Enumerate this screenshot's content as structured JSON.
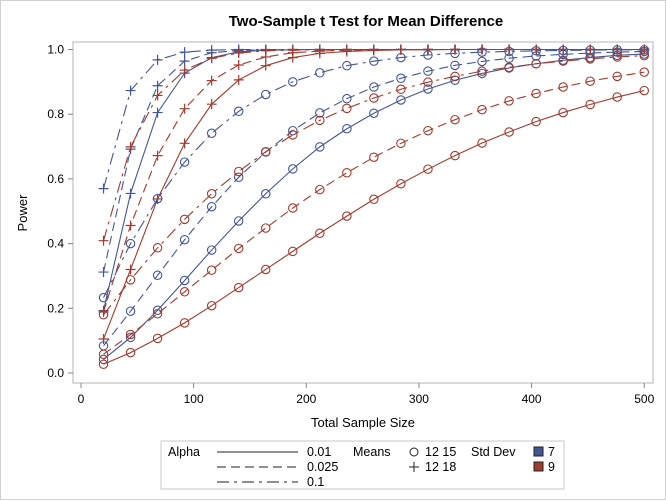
{
  "chart_data": {
    "type": "line",
    "title": "Two-Sample t Test for Mean Difference",
    "xlabel": "Total Sample Size",
    "ylabel": "Power",
    "xlim": [
      0,
      510
    ],
    "ylim": [
      0,
      1.0
    ],
    "xticks": [
      "0",
      "100",
      "200",
      "300",
      "400",
      "500"
    ],
    "yticks": [
      "0.0",
      "0.2",
      "0.4",
      "0.6",
      "0.8",
      "1.0"
    ],
    "grid": false,
    "legend_placement": "bottom",
    "x": [
      20,
      44,
      68,
      92,
      116,
      140,
      164,
      188,
      212,
      236,
      260,
      284,
      308,
      332,
      356,
      380,
      404,
      428,
      452,
      476,
      500
    ],
    "colors": {
      "7": "#445694",
      "9": "#A23A2E"
    },
    "legend": {
      "alpha_title": "Alpha",
      "alpha": [
        {
          "label": "0.01",
          "dash": "solid"
        },
        {
          "label": "0.025",
          "dash": "dashed"
        },
        {
          "label": "0.1",
          "dash": "dash-dot"
        }
      ],
      "means_title": "Means",
      "means": [
        {
          "label": "12 15",
          "marker": "circle"
        },
        {
          "label": "12 18",
          "marker": "plus"
        }
      ],
      "sd_title": "Std Dev",
      "sd": [
        {
          "label": "7"
        },
        {
          "label": "9"
        }
      ]
    },
    "series": [
      {
        "alpha": "0.01",
        "means": "12 15",
        "sd": "7",
        "values": [
          0.042,
          0.11,
          0.194,
          0.286,
          0.38,
          0.47,
          0.554,
          0.631,
          0.699,
          0.755,
          0.803,
          0.844,
          0.878,
          0.905,
          0.926,
          0.943,
          0.956,
          0.967,
          0.975,
          0.982,
          0.986
        ]
      },
      {
        "alpha": "0.01",
        "means": "12 15",
        "sd": "9",
        "values": [
          0.027,
          0.063,
          0.107,
          0.155,
          0.208,
          0.264,
          0.32,
          0.376,
          0.432,
          0.485,
          0.537,
          0.585,
          0.63,
          0.672,
          0.711,
          0.745,
          0.777,
          0.805,
          0.83,
          0.853,
          0.873
        ]
      },
      {
        "alpha": "0.01",
        "means": "12 18",
        "sd": "7",
        "values": [
          0.193,
          0.555,
          0.805,
          0.927,
          0.975,
          0.993,
          0.998,
          0.999,
          1,
          1,
          1,
          1,
          1,
          1,
          1,
          1,
          1,
          1,
          1,
          1,
          1
        ]
      },
      {
        "alpha": "0.01",
        "means": "12 18",
        "sd": "9",
        "values": [
          0.105,
          0.32,
          0.538,
          0.71,
          0.831,
          0.906,
          0.95,
          0.975,
          0.988,
          0.994,
          0.997,
          0.999,
          0.999,
          1,
          1,
          1,
          1,
          1,
          1,
          1,
          1
        ]
      },
      {
        "alpha": "0.025",
        "means": "12 15",
        "sd": "7",
        "values": [
          0.084,
          0.191,
          0.302,
          0.412,
          0.514,
          0.605,
          0.683,
          0.749,
          0.804,
          0.848,
          0.884,
          0.911,
          0.933,
          0.951,
          0.963,
          0.973,
          0.98,
          0.985,
          0.989,
          0.992,
          0.994
        ]
      },
      {
        "alpha": "0.025",
        "means": "12 15",
        "sd": "9",
        "values": [
          0.058,
          0.119,
          0.183,
          0.251,
          0.318,
          0.385,
          0.448,
          0.51,
          0.567,
          0.619,
          0.667,
          0.71,
          0.749,
          0.783,
          0.814,
          0.841,
          0.864,
          0.884,
          0.902,
          0.917,
          0.93
        ]
      },
      {
        "alpha": "0.025",
        "means": "12 18",
        "sd": "7",
        "values": [
          0.312,
          0.692,
          0.888,
          0.964,
          0.99,
          0.997,
          0.999,
          1,
          1,
          1,
          1,
          1,
          1,
          1,
          1,
          1,
          1,
          1,
          1,
          1,
          1
        ]
      },
      {
        "alpha": "0.025",
        "means": "12 18",
        "sd": "9",
        "values": [
          0.189,
          0.456,
          0.672,
          0.817,
          0.904,
          0.952,
          0.977,
          0.99,
          0.995,
          0.998,
          0.999,
          1,
          1,
          1,
          1,
          1,
          1,
          1,
          1,
          1,
          1
        ]
      },
      {
        "alpha": "0.1",
        "means": "12 15",
        "sd": "7",
        "values": [
          0.233,
          0.4,
          0.539,
          0.652,
          0.741,
          0.809,
          0.861,
          0.9,
          0.928,
          0.95,
          0.964,
          0.975,
          0.983,
          0.988,
          0.992,
          0.994,
          0.996,
          0.997,
          0.998,
          0.999,
          0.999
        ]
      },
      {
        "alpha": "0.1",
        "means": "12 15",
        "sd": "9",
        "values": [
          0.18,
          0.288,
          0.387,
          0.475,
          0.554,
          0.623,
          0.684,
          0.736,
          0.781,
          0.818,
          0.85,
          0.877,
          0.899,
          0.917,
          0.933,
          0.945,
          0.956,
          0.964,
          0.971,
          0.977,
          0.981
        ]
      },
      {
        "alpha": "0.1",
        "means": "12 18",
        "sd": "7",
        "values": [
          0.57,
          0.873,
          0.968,
          0.992,
          0.998,
          1,
          1,
          1,
          1,
          1,
          1,
          1,
          1,
          1,
          1,
          1,
          1,
          1,
          1,
          1,
          1
        ]
      },
      {
        "alpha": "0.1",
        "means": "12 18",
        "sd": "9",
        "values": [
          0.409,
          0.699,
          0.858,
          0.936,
          0.973,
          0.989,
          0.996,
          0.998,
          0.999,
          1,
          1,
          1,
          1,
          1,
          1,
          1,
          1,
          1,
          1,
          1,
          1
        ]
      }
    ]
  }
}
